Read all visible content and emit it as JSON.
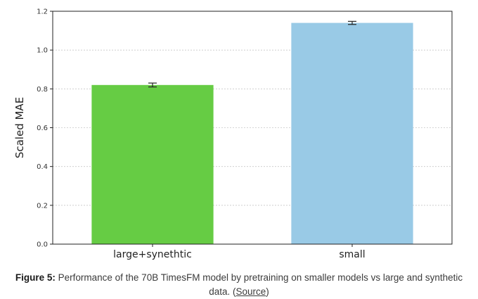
{
  "chart_data": {
    "type": "bar",
    "categories": [
      "large+synethtic",
      "small"
    ],
    "values": [
      0.82,
      1.14
    ],
    "errors": [
      0.01,
      0.008
    ],
    "colors": [
      "#66cc44",
      "#99cae6"
    ],
    "error_bar_color": "#222222",
    "grid_color": "#c8c8c8",
    "ylabel": "Scaled MAE",
    "xlabel": "",
    "title": "",
    "ylim": [
      0,
      1.2
    ],
    "yticks": [
      "0.0",
      "0.2",
      "0.4",
      "0.6",
      "0.8",
      "1.0",
      "1.2"
    ],
    "grid": true
  },
  "caption": {
    "label": "Figure 5:",
    "text": " Performance of the 70B TimesFM model by pretraining on smaller models vs large and synthetic",
    "text_line2_prefix": "data. (",
    "link": "Source",
    "text_line2_suffix": ")"
  }
}
